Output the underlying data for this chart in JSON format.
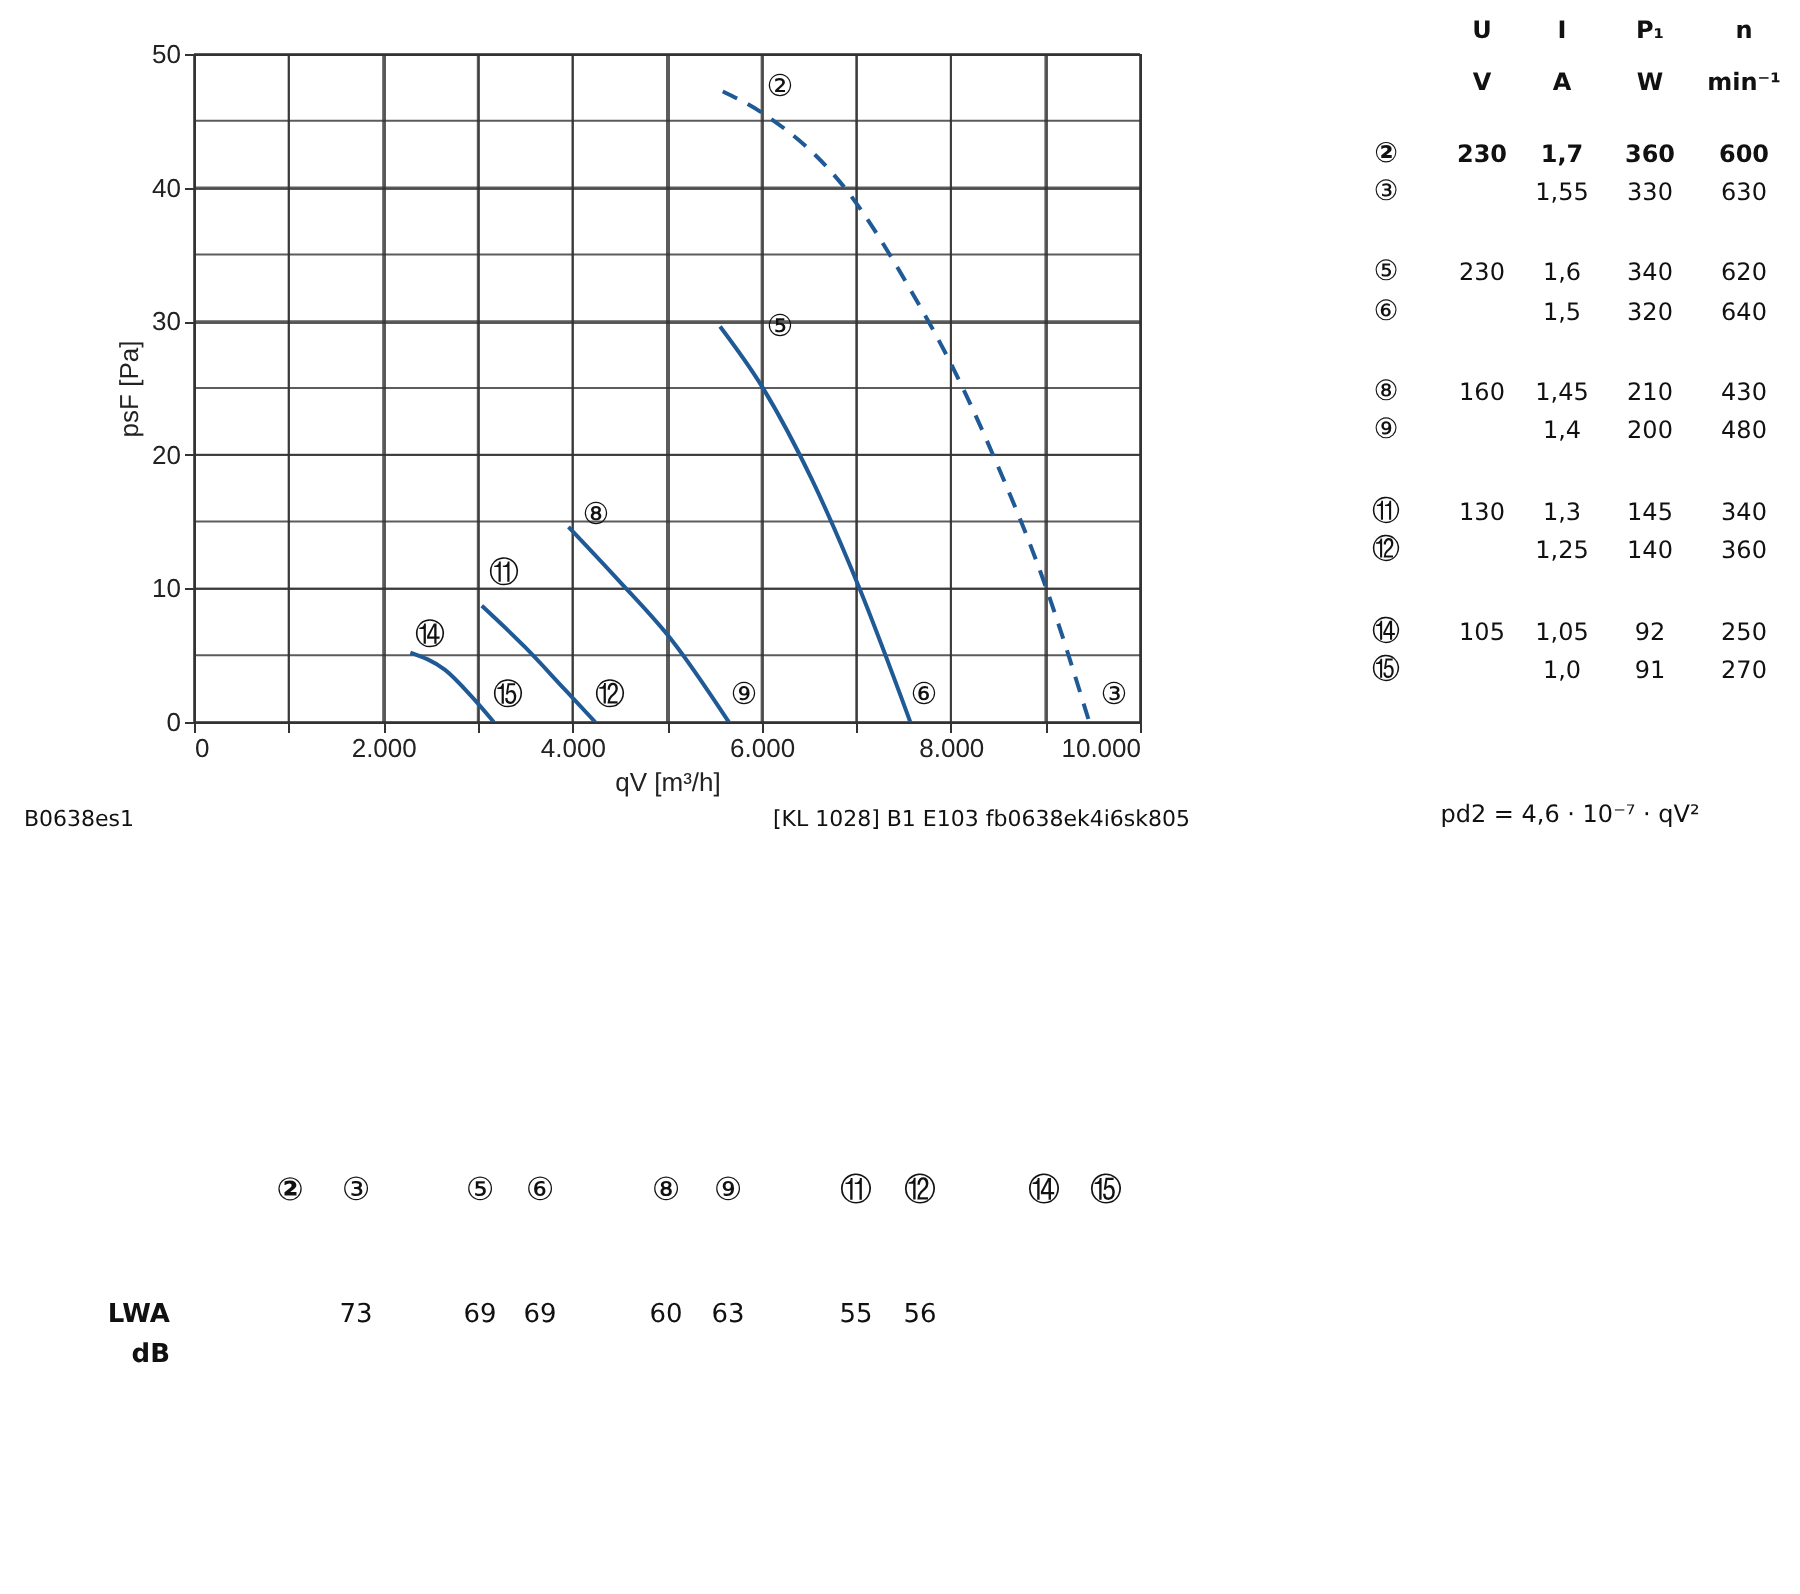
{
  "chart_data": {
    "type": "line",
    "xlabel": "qV [m³/h]",
    "ylabel": "psF [Pa]",
    "xlim": [
      0,
      10000
    ],
    "ylim": [
      0,
      50
    ],
    "xticks": [
      0,
      {
        "value": 1000,
        "label": null
      },
      {
        "value": 2000,
        "label": "2.000"
      },
      {
        "value": 3000,
        "label": null
      },
      {
        "value": 4000,
        "label": "4.000"
      },
      {
        "value": 5000,
        "label": null
      },
      {
        "value": 6000,
        "label": "6.000"
      },
      {
        "value": 7000,
        "label": null
      },
      {
        "value": 8000,
        "label": "8.000"
      },
      {
        "value": 9000,
        "label": null
      },
      {
        "value": 10000,
        "label": "10.000"
      }
    ],
    "yticks": [
      0,
      {
        "value": 5,
        "label": null
      },
      10,
      {
        "value": 15,
        "label": null
      },
      20,
      {
        "value": 25,
        "label": null
      },
      30,
      {
        "value": 35,
        "label": null
      },
      40,
      {
        "value": 45,
        "label": null
      },
      50
    ],
    "grid": true,
    "marker": "none",
    "series": [
      {
        "color": "#1f5a96",
        "line_style": "dashed",
        "x": [
          5590,
          6005,
          6888,
          7594,
          8017,
          8440,
          9005,
          9464
        ],
        "values": [
          47.2,
          45.6,
          39.9,
          32.1,
          26.6,
          20.1,
          10.1,
          0
        ]
      },
      {
        "color": "#1f5a96",
        "line_style": "solid",
        "x": [
          5561,
          6005,
          6535,
          7029,
          7572
        ],
        "values": [
          29.6,
          25.1,
          18.1,
          10.1,
          0
        ]
      },
      {
        "color": "#1f5a96",
        "line_style": "solid",
        "x": [
          3959,
          4488,
          5053,
          5653
        ],
        "values": [
          14.6,
          10.6,
          6.1,
          0
        ]
      },
      {
        "color": "#1f5a96",
        "line_style": "solid",
        "x": [
          3042,
          3500,
          3924,
          4241
        ],
        "values": [
          8.7,
          5.6,
          2.4,
          0
        ]
      },
      {
        "color": "#1f5a96",
        "line_style": "solid",
        "x": [
          2287,
          2654,
          2936,
          3169
        ],
        "values": [
          5.2,
          3.9,
          1.9,
          0
        ]
      }
    ],
    "annotations": [
      "B0638es1",
      "[KL 1028] B1 E103 fb0638ek4i6sk805",
      "\tU\tI\tP₁\tn",
      "\tV\tA\tW\tmin⁻¹",
      "②\t230\t1,7\t360\t600",
      "③\t\t1,55\t330\t630",
      "⑤\t230\t1,6\t340\t620",
      "⑥\t\t1,5\t320\t640",
      "⑧\t160\t1,45\t210\t430",
      "⑨\t\t1,4\t200\t480",
      "⑪\t130\t1,3\t145\t340",
      "⑫\t\t1,25\t140\t360",
      "⑭\t105\t1,05\t92\t250",
      "⑮\t\t1,0\t91\t270",
      "pd2 = 4,6 · 10⁻⁷ · qV²",
      "\t②\t③\t⑤\t⑥\t⑧\t⑨\t⑪\t⑫\t⑭\t⑮",
      "LWA\t\t73\t69\t69\t60\t63\t55\t56\t\t",
      "dB",
      "②",
      "③",
      "⑤",
      "⑥",
      "⑧",
      "⑨",
      "⑪",
      "⑫",
      "⑭",
      "⑮"
    ]
  }
}
